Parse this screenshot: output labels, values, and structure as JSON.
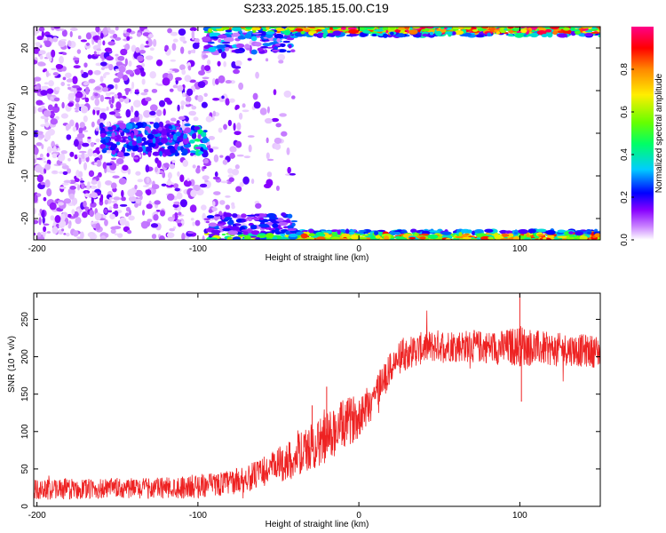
{
  "title": "S233.2025.185.15.00.C19",
  "chart_data": [
    {
      "type": "heatmap",
      "xlabel": "Height of straight line (km)",
      "ylabel": "Frequency (Hz)",
      "xlim": [
        -202,
        150
      ],
      "ylim": [
        -25,
        25
      ],
      "xticks": [
        -200,
        -100,
        0,
        100
      ],
      "yticks": [
        -20,
        -10,
        0,
        10,
        20
      ],
      "xtick_labels": [
        "-200",
        "-100",
        "0",
        "100"
      ],
      "ytick_labels": [
        "-20",
        "-10",
        "0",
        "10",
        "20"
      ],
      "colorbar": {
        "label": "Normalized spectral amplitude",
        "range": [
          0,
          1
        ],
        "ticks": [
          0.0,
          0.2,
          0.4,
          0.6,
          0.8
        ],
        "tick_labels": [
          "0.0",
          "0.2",
          "0.4",
          "0.6",
          "0.8"
        ],
        "colors": [
          "#ffffff",
          "#9900ff",
          "#0000ff",
          "#00ffff",
          "#00ff00",
          "#ffff00",
          "#ff8800",
          "#ff0000",
          "#ff00aa"
        ]
      },
      "bands": [
        {
          "region": "scattered low-amplitude noise",
          "x_range": [
            -202,
            -40
          ],
          "freq_range": [
            -25,
            25
          ],
          "amplitude": 0.1
        },
        {
          "region": "cluster near 0 Hz",
          "x_range": [
            -160,
            -95
          ],
          "freq_range": [
            -5,
            2
          ],
          "amplitude": 0.3
        },
        {
          "region": "upper edge band",
          "x_range": [
            -95,
            150
          ],
          "freq_range": [
            23,
            25
          ],
          "amplitude": 0.9
        },
        {
          "region": "lower edge band",
          "x_range": [
            -95,
            150
          ],
          "freq_range": [
            -25,
            -23
          ],
          "amplitude": 0.7
        }
      ]
    },
    {
      "type": "line",
      "xlabel": "Height of straight line (km)",
      "ylabel": "SNR (10 * v/v)",
      "xlim": [
        -202,
        150
      ],
      "ylim": [
        0,
        285
      ],
      "xticks": [
        -200,
        -100,
        0,
        100
      ],
      "yticks": [
        0,
        50,
        100,
        150,
        200,
        250
      ],
      "xtick_labels": [
        "-200",
        "-100",
        "0",
        "100"
      ],
      "ytick_labels": [
        "0",
        "50",
        "100",
        "150",
        "200",
        "250"
      ],
      "color": "#ee2222",
      "series": [
        {
          "x": [
            -202,
            -190,
            -180,
            -170,
            -160,
            -150,
            -140,
            -130,
            -120,
            -110,
            -100,
            -90,
            -80,
            -70,
            -60,
            -50,
            -40,
            -30,
            -20,
            -15,
            -10,
            -5,
            0,
            5,
            10,
            15,
            20,
            25,
            30,
            40,
            50,
            60,
            70,
            80,
            90,
            100,
            110,
            120,
            130,
            140,
            150
          ],
          "values": [
            22,
            23,
            23,
            23,
            23,
            24,
            24,
            24,
            25,
            26,
            27,
            29,
            32,
            37,
            45,
            55,
            65,
            78,
            92,
            100,
            108,
            115,
            122,
            135,
            150,
            168,
            185,
            198,
            205,
            212,
            215,
            215,
            214,
            213,
            212,
            215,
            212,
            210,
            210,
            208,
            207
          ],
          "noise": [
            14,
            14,
            14,
            14,
            14,
            14,
            14,
            14,
            15,
            15,
            16,
            16,
            17,
            18,
            20,
            24,
            28,
            32,
            34,
            34,
            34,
            32,
            30,
            28,
            26,
            24,
            22,
            22,
            22,
            22,
            22,
            22,
            22,
            22,
            24,
            28,
            24,
            22,
            22,
            22,
            22
          ]
        }
      ],
      "spikes": [
        {
          "x": 100,
          "y": 285
        },
        {
          "x": 101,
          "y": 140
        },
        {
          "x": -29,
          "y": 135
        },
        {
          "x": -20,
          "y": 160
        }
      ]
    }
  ]
}
